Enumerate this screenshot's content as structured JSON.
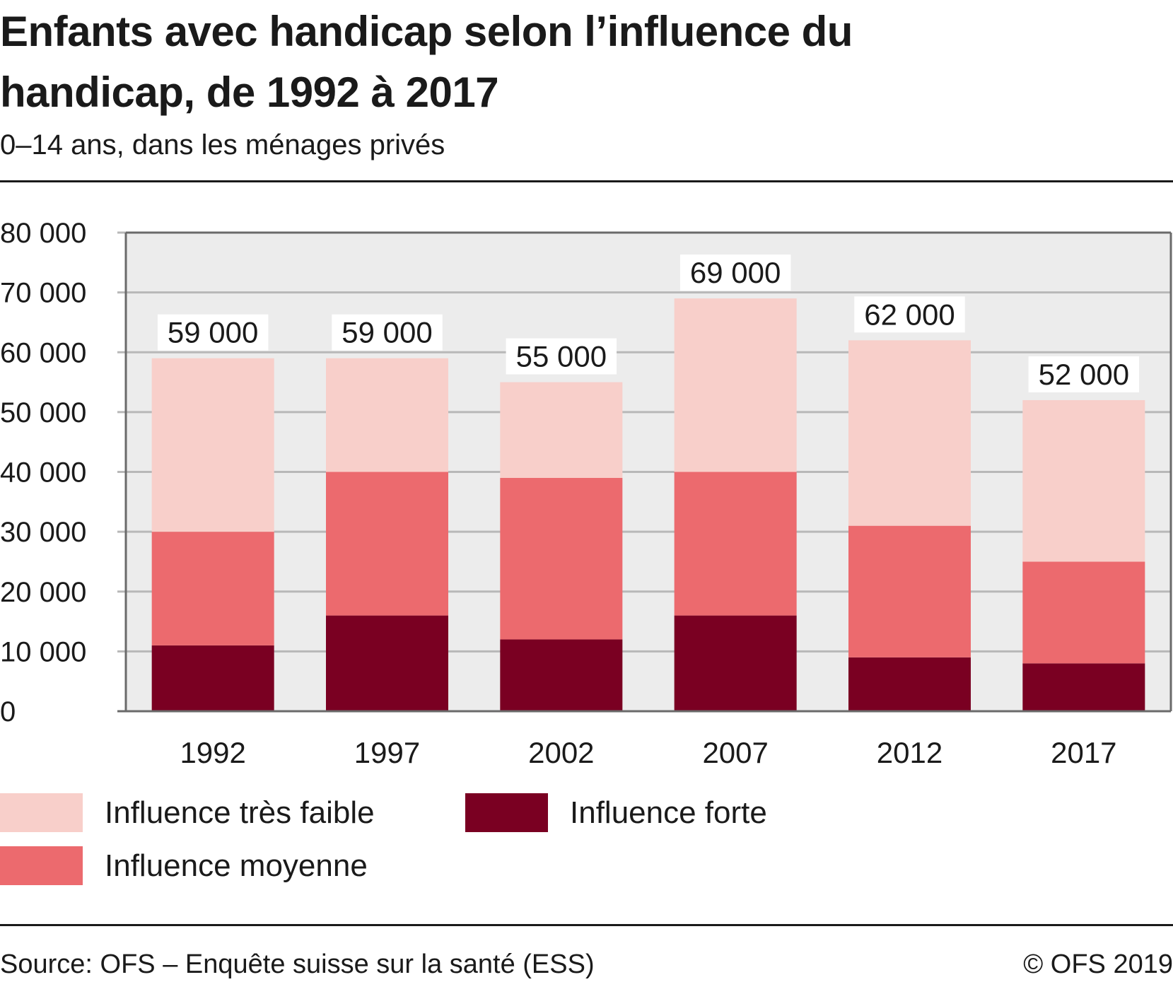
{
  "title": "Enfants avec handicap selon l’influence du handicap, de 1992 à 2017",
  "subtitle": "0–14 ans, dans les ménages privés",
  "source": "Source: OFS – Enquête suisse sur la santé (ESS)",
  "copyright": "© OFS 2019",
  "colors": {
    "forte": "#7a0022",
    "moyenne": "#ec6a6e",
    "tres_faible": "#f8cfca",
    "plot_background": "#ececec",
    "grid": "#b8b8b8",
    "axis": "#6a6a6a"
  },
  "chart_data": {
    "type": "bar",
    "stacked": true,
    "categories": [
      "1992",
      "1997",
      "2002",
      "2007",
      "2012",
      "2017"
    ],
    "series": [
      {
        "name": "Influence forte",
        "values": [
          11000,
          16000,
          12000,
          16000,
          9000,
          8000
        ]
      },
      {
        "name": "Influence moyenne",
        "values": [
          19000,
          24000,
          27000,
          24000,
          22000,
          17000
        ]
      },
      {
        "name": "Influence très faible",
        "values": [
          29000,
          19000,
          16000,
          29000,
          31000,
          27000
        ]
      }
    ],
    "totals": [
      59000,
      59000,
      55000,
      69000,
      62000,
      52000
    ],
    "total_labels": [
      "59 000",
      "59 000",
      "55 000",
      "69 000",
      "62 000",
      "52 000"
    ],
    "y_tick_labels": [
      "0",
      "10 000",
      "20 000",
      "30 000",
      "40 000",
      "50 000",
      "60 000",
      "70 000",
      "80 000"
    ],
    "ylim": [
      0,
      80000
    ],
    "grid": true,
    "legend": {
      "placement": "bottom",
      "items": [
        {
          "label": "Influence très faible",
          "color": "#f8cfca"
        },
        {
          "label": "Influence moyenne",
          "color": "#ec6a6e"
        },
        {
          "label": "Influence forte",
          "color": "#7a0022"
        }
      ]
    }
  }
}
